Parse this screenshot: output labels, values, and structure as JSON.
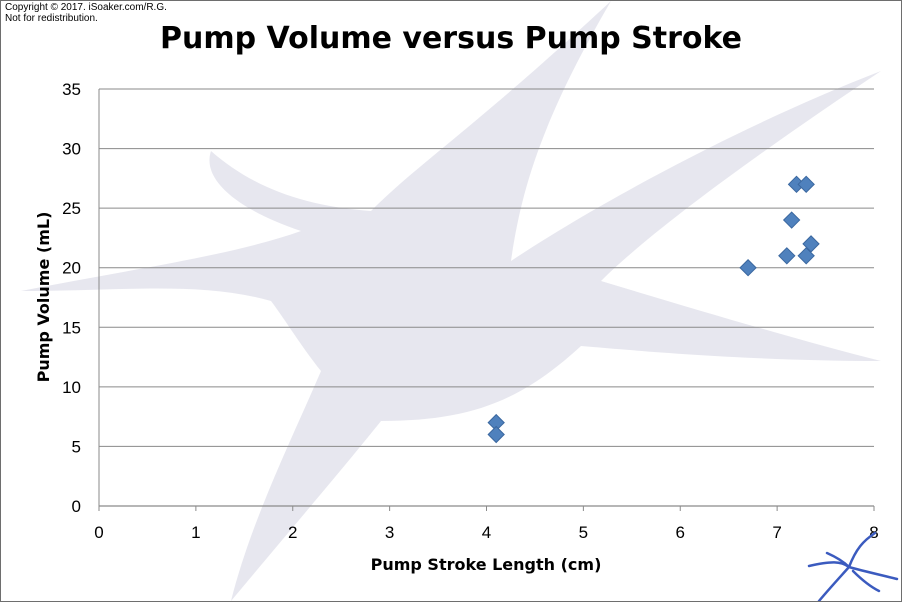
{
  "watermark_text": "Copyright © 2017. iSoaker.com/R.G.\nNot for redistribution.",
  "colors": {
    "marker": "#4f81bd",
    "marker_stroke": "#3a679f",
    "grid": "#8a8a8a",
    "watermark": "#e6e6ee",
    "logo": "#3b5bbf"
  },
  "logo_icon": "isoaker-splash-logo-icon",
  "chart_data": {
    "type": "scatter",
    "title": "Pump Volume versus Pump Stroke",
    "xlabel": "Pump Stroke Length (cm)",
    "ylabel": "Pump Volume (mL)",
    "xlim": [
      0,
      8
    ],
    "ylim": [
      0,
      35
    ],
    "xticks": [
      "0",
      "1",
      "2",
      "3",
      "4",
      "5",
      "6",
      "7",
      "8"
    ],
    "yticks": [
      "0",
      "5",
      "10",
      "15",
      "20",
      "25",
      "30",
      "35"
    ],
    "grid": "horizontal",
    "marker": "diamond",
    "series": [
      {
        "points": [
          {
            "x": 4.1,
            "y": 7
          },
          {
            "x": 4.1,
            "y": 6
          },
          {
            "x": 6.7,
            "y": 20
          },
          {
            "x": 7.1,
            "y": 21
          },
          {
            "x": 7.15,
            "y": 24
          },
          {
            "x": 7.2,
            "y": 27
          },
          {
            "x": 7.3,
            "y": 27
          },
          {
            "x": 7.3,
            "y": 21
          },
          {
            "x": 7.35,
            "y": 22
          }
        ]
      }
    ]
  }
}
